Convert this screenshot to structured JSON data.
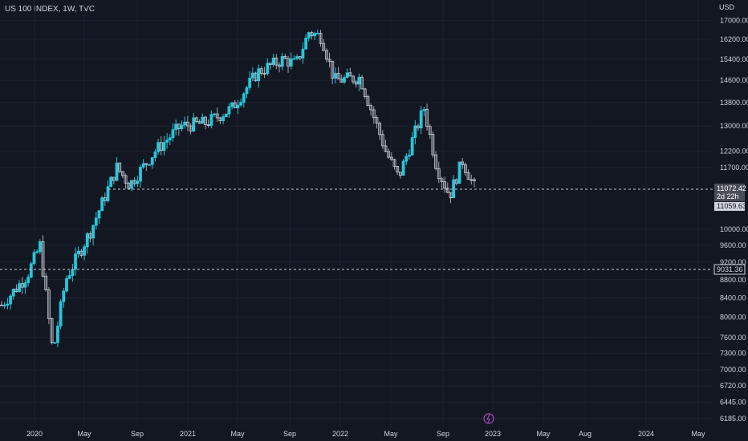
{
  "chart_title": "US 100 INDEX, 1W, TVC",
  "currency_label": "USD",
  "colors": {
    "background": "#131722",
    "up": "#26c6da",
    "down": "#ffffff",
    "grid": "#1e2230",
    "text": "#d1d4dc"
  },
  "chart_data": {
    "type": "candlestick",
    "y_axis": {
      "scale": "log",
      "ticks": [
        6185,
        6445,
        6720,
        7000,
        7300,
        7600,
        8000,
        8400,
        8800,
        9200,
        9600,
        10000,
        11700,
        12200,
        13000,
        13800,
        14600,
        15400,
        16200,
        17000
      ],
      "range": [
        6060,
        17900
      ]
    },
    "x_axis": {
      "tick_labels": [
        "2020",
        "May",
        "Sep",
        "2021",
        "May",
        "Sep",
        "2022",
        "May",
        "Sep",
        "2023",
        "May",
        "Aug",
        "2024",
        "May"
      ]
    },
    "price_tags": [
      {
        "label": "11072.42",
        "sub": "2d 22h",
        "style": "current"
      },
      {
        "label": "11059.63",
        "style": "plain"
      },
      {
        "label": "9031.36",
        "style": "outline"
      }
    ],
    "horizontal_lines": [
      11072.42,
      9031.36
    ],
    "series_close_anchors": [
      [
        "2019-11",
        8250
      ],
      [
        "2020-01",
        8900
      ],
      [
        "2020-02",
        9600
      ],
      [
        "2020-03",
        7300
      ],
      [
        "2020-04",
        8800
      ],
      [
        "2020-06",
        10000
      ],
      [
        "2020-08",
        11700
      ],
      [
        "2020-09",
        11200
      ],
      [
        "2020-11",
        12200
      ],
      [
        "2021-01",
        13000
      ],
      [
        "2021-03",
        13100
      ],
      [
        "2021-05",
        13600
      ],
      [
        "2021-07",
        14900
      ],
      [
        "2021-09",
        15400
      ],
      [
        "2021-10",
        15200
      ],
      [
        "2021-11",
        16500
      ],
      [
        "2021-12",
        16300
      ],
      [
        "2022-01",
        14600
      ],
      [
        "2022-03",
        14700
      ],
      [
        "2022-05",
        12200
      ],
      [
        "2022-06",
        11400
      ],
      [
        "2022-08",
        13600
      ],
      [
        "2022-09",
        11700
      ],
      [
        "2022-10",
        10900
      ],
      [
        "2022-11",
        11900
      ],
      [
        "2022-12",
        11072
      ]
    ]
  }
}
